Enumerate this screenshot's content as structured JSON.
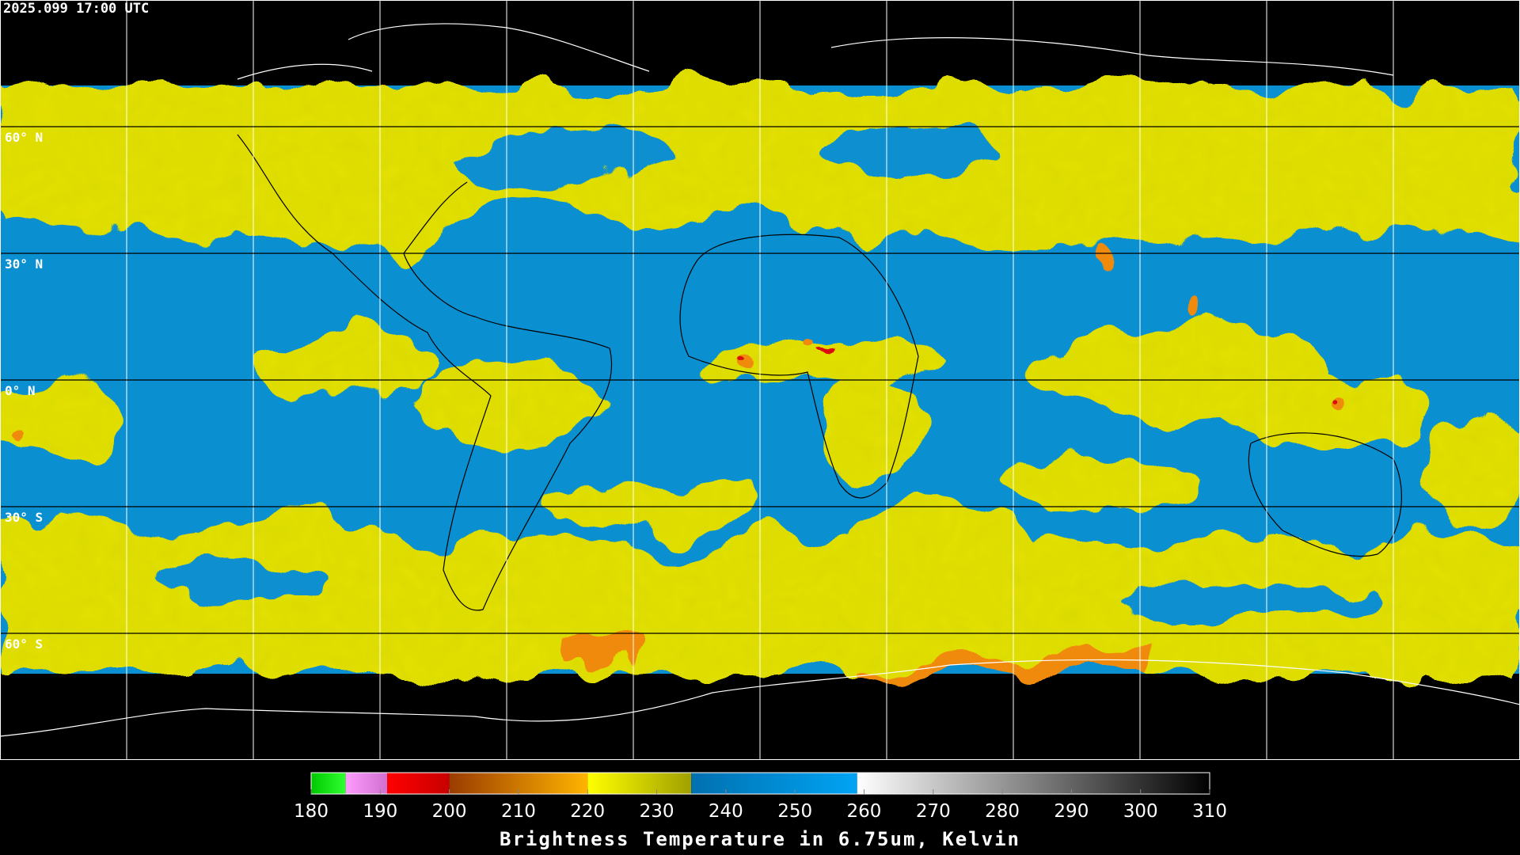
{
  "header": {
    "timestamp": "2025.099 17:00 UTC"
  },
  "map": {
    "latitude_lines": [
      {
        "value": 60,
        "label": "60° N"
      },
      {
        "value": 30,
        "label": "30° N"
      },
      {
        "value": 0,
        "label": "0° N"
      },
      {
        "value": -30,
        "label": "30° S"
      },
      {
        "value": -60,
        "label": "60° S"
      }
    ]
  },
  "colorbar": {
    "title": "Brightness Temperature in 6.75um, Kelvin",
    "range": [
      180,
      310
    ],
    "ticks": [
      180,
      190,
      200,
      210,
      220,
      230,
      240,
      250,
      260,
      270,
      280,
      290,
      300,
      310
    ],
    "segments": [
      {
        "from": 180,
        "to": 185,
        "colors": [
          "#00c800",
          "#30ff30"
        ]
      },
      {
        "from": 185,
        "to": 191,
        "colors": [
          "#ff9cff",
          "#d070d0"
        ]
      },
      {
        "from": 191,
        "to": 200,
        "colors": [
          "#ff0000",
          "#c80000"
        ]
      },
      {
        "from": 200,
        "to": 220,
        "colors": [
          "#9a3c00",
          "#ffb400"
        ]
      },
      {
        "from": 220,
        "to": 235,
        "colors": [
          "#ffff00",
          "#a0a000"
        ]
      },
      {
        "from": 235,
        "to": 259,
        "colors": [
          "#0070b0",
          "#00a4f4"
        ]
      },
      {
        "from": 259,
        "to": 310,
        "colors": [
          "#ffffff",
          "#000000"
        ]
      }
    ]
  }
}
